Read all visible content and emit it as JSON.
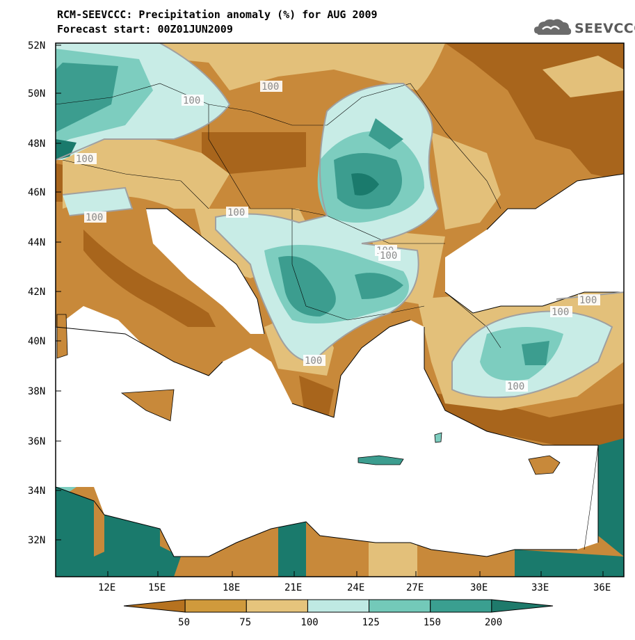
{
  "title": {
    "line1": "RCM-SEEVCCC: Precipitation anomaly (%) for AUG 2009",
    "line2": "Forecast start: 00Z01JUN2009"
  },
  "logo": {
    "text": "SEEVCCC",
    "icon": "cloud-logo-icon"
  },
  "axes": {
    "lat_labels": [
      "52N",
      "50N",
      "48N",
      "46N",
      "44N",
      "42N",
      "40N",
      "38N",
      "36N",
      "34N",
      "32N"
    ],
    "lon_labels": [
      "12E",
      "15E",
      "18E",
      "21E",
      "24E",
      "27E",
      "30E",
      "33E",
      "36E"
    ]
  },
  "contour_labels": [
    "100",
    "100",
    "100",
    "100",
    "100",
    "100",
    "100",
    "100",
    "100",
    "100",
    "100"
  ],
  "colorbar": {
    "ticks": [
      "50",
      "75",
      "100",
      "125",
      "150",
      "200"
    ],
    "colors": [
      "#b6721f",
      "#d09a3c",
      "#e6c47c",
      "#bfe9e3",
      "#73c9b9",
      "#3a9f90",
      "#1e7a6b"
    ]
  },
  "colors": {
    "deep_dry": "#a8651c",
    "dry": "#c8893a",
    "mild_dry": "#e3c07a",
    "mild_wet": "#c8ece6",
    "wet": "#7dcdbf",
    "very_wet": "#3c9d8f",
    "extreme_wet": "#1a7a6c",
    "contour_line": "#a0a0a0",
    "sea": "#ffffff"
  }
}
